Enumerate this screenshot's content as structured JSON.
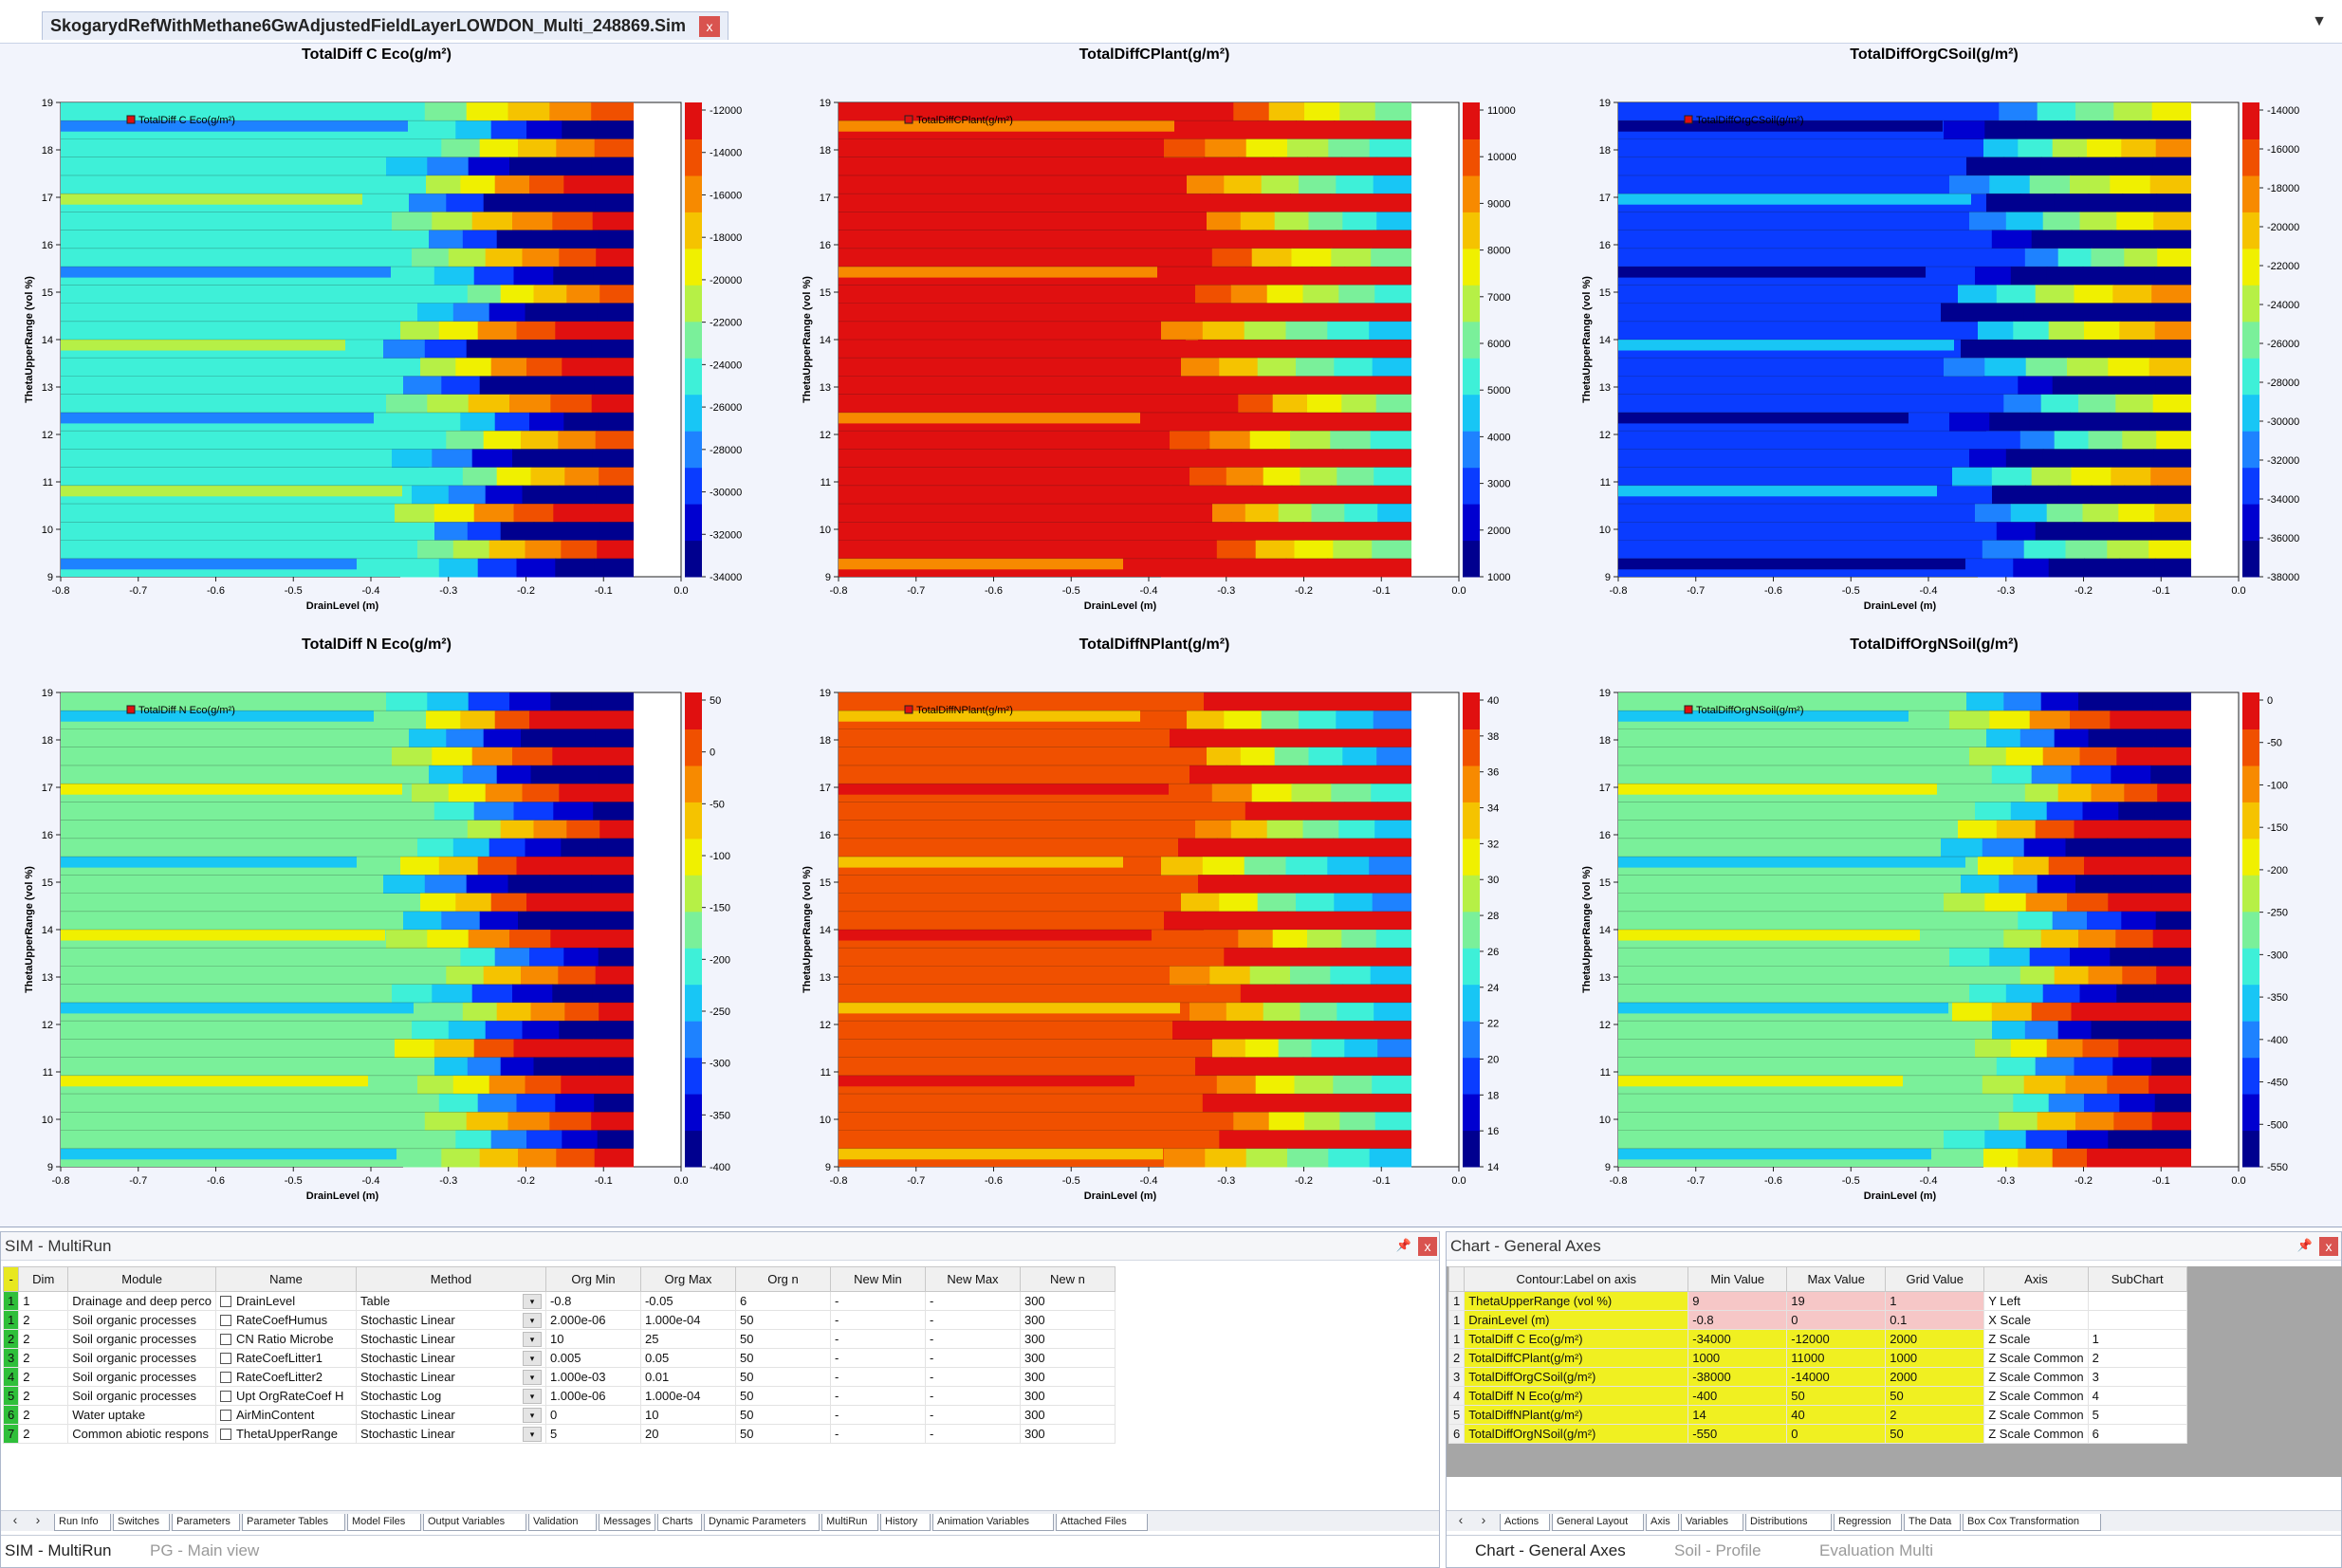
{
  "document_tab": {
    "title": "SkogarydRefWithMethane6GwAdjustedFieldLayerLOWDON_Multi_248869.Sim",
    "close": "x",
    "dropdown": "▼"
  },
  "colors": {
    "ramp": [
      "#00008f",
      "#0000d0",
      "#0a3cff",
      "#1e82ff",
      "#18c6f5",
      "#3ef0d8",
      "#7af09a",
      "#b6f046",
      "#f0f000",
      "#f5c300",
      "#f78a00",
      "#f05000",
      "#e01010"
    ],
    "chart_bg": "#f2f4fc",
    "row_header_green": "#2fbf3a",
    "highlight_yellow": "#f0f021",
    "highlight_pink": "#f6c7c7"
  },
  "chart_data": [
    {
      "type": "heatmap",
      "title": "TotalDiff C Eco(g/m²)",
      "legend": "TotalDiff C Eco(g/m²)",
      "legend_placement": "top-left",
      "xlabel": "DrainLevel (m)",
      "ylabel": "ThetaUpperRange (vol %)",
      "xlim": [
        -0.8,
        0.0
      ],
      "ylim": [
        9,
        19
      ],
      "xticks": [
        "-0.8",
        "-0.7",
        "-0.6",
        "-0.5",
        "-0.4",
        "-0.3",
        "-0.2",
        "-0.1",
        "0.0"
      ],
      "yticks": [
        "9",
        "10",
        "11",
        "12",
        "13",
        "14",
        "15",
        "16",
        "17",
        "18",
        "19"
      ],
      "zlim": [
        -34000,
        -12000
      ],
      "zticks": [
        "-12000",
        "-14000",
        "-16000",
        "-18000",
        "-20000",
        "-22000",
        "-24000",
        "-26000",
        "-28000",
        "-30000",
        "-32000",
        "-34000"
      ],
      "z_grid": 2000,
      "dominant_level": 5
    },
    {
      "type": "heatmap",
      "title": "TotalDiffCPlant(g/m²)",
      "legend": "TotalDiffCPlant(g/m²)",
      "legend_placement": "top-left",
      "xlabel": "DrainLevel (m)",
      "ylabel": "ThetaUpperRange (vol %)",
      "xlim": [
        -0.8,
        0.0
      ],
      "ylim": [
        9,
        19
      ],
      "xticks": [
        "-0.8",
        "-0.7",
        "-0.6",
        "-0.5",
        "-0.4",
        "-0.3",
        "-0.2",
        "-0.1",
        "0.0"
      ],
      "yticks": [
        "9",
        "10",
        "11",
        "12",
        "13",
        "14",
        "15",
        "16",
        "17",
        "18",
        "19"
      ],
      "zlim": [
        1000,
        11000
      ],
      "zticks": [
        "11000",
        "10000",
        "9000",
        "8000",
        "7000",
        "6000",
        "5000",
        "4000",
        "3000",
        "2000",
        "1000"
      ],
      "z_grid": 1000,
      "dominant_level": 12
    },
    {
      "type": "heatmap",
      "title": "TotalDiffOrgCSoil(g/m²)",
      "legend": "TotalDiffOrgCSoil(g/m²)",
      "legend_placement": "top-left",
      "xlabel": "DrainLevel (m)",
      "ylabel": "ThetaUpperRange (vol %)",
      "xlim": [
        -0.8,
        0.0
      ],
      "ylim": [
        9,
        19
      ],
      "xticks": [
        "-0.8",
        "-0.7",
        "-0.6",
        "-0.5",
        "-0.4",
        "-0.3",
        "-0.2",
        "-0.1",
        "0.0"
      ],
      "yticks": [
        "9",
        "10",
        "11",
        "12",
        "13",
        "14",
        "15",
        "16",
        "17",
        "18",
        "19"
      ],
      "zlim": [
        -38000,
        -14000
      ],
      "zticks": [
        "-14000",
        "-16000",
        "-18000",
        "-20000",
        "-22000",
        "-24000",
        "-26000",
        "-28000",
        "-30000",
        "-32000",
        "-34000",
        "-36000",
        "-38000"
      ],
      "z_grid": 2000,
      "dominant_level": 2
    },
    {
      "type": "heatmap",
      "title": "TotalDiff N Eco(g/m²)",
      "legend": "TotalDiff N Eco(g/m²)",
      "legend_placement": "top-left",
      "xlabel": "DrainLevel (m)",
      "ylabel": "ThetaUpperRange (vol %)",
      "xlim": [
        -0.8,
        0.0
      ],
      "ylim": [
        9,
        19
      ],
      "xticks": [
        "-0.8",
        "-0.7",
        "-0.6",
        "-0.5",
        "-0.4",
        "-0.3",
        "-0.2",
        "-0.1",
        "0.0"
      ],
      "yticks": [
        "9",
        "10",
        "11",
        "12",
        "13",
        "14",
        "15",
        "16",
        "17",
        "18",
        "19"
      ],
      "zlim": [
        -400,
        50
      ],
      "zticks": [
        "50",
        "0",
        "-50",
        "-100",
        "-150",
        "-200",
        "-250",
        "-300",
        "-350",
        "-400"
      ],
      "z_grid": 50,
      "dominant_level": 6
    },
    {
      "type": "heatmap",
      "title": "TotalDiffNPlant(g/m²)",
      "legend": "TotalDiffNPlant(g/m²)",
      "legend_placement": "top-left",
      "xlabel": "DrainLevel (m)",
      "ylabel": "ThetaUpperRange (vol %)",
      "xlim": [
        -0.8,
        0.0
      ],
      "ylim": [
        9,
        19
      ],
      "xticks": [
        "-0.8",
        "-0.7",
        "-0.6",
        "-0.5",
        "-0.4",
        "-0.3",
        "-0.2",
        "-0.1",
        "0.0"
      ],
      "yticks": [
        "9",
        "10",
        "11",
        "12",
        "13",
        "14",
        "15",
        "16",
        "17",
        "18",
        "19"
      ],
      "zlim": [
        14,
        40
      ],
      "zticks": [
        "40",
        "38",
        "36",
        "34",
        "32",
        "30",
        "28",
        "26",
        "24",
        "22",
        "20",
        "18",
        "16",
        "14"
      ],
      "z_grid": 2,
      "dominant_level": 11
    },
    {
      "type": "heatmap",
      "title": "TotalDiffOrgNSoil(g/m²)",
      "legend": "TotalDiffOrgNSoil(g/m²)",
      "legend_placement": "top-left",
      "xlabel": "DrainLevel (m)",
      "ylabel": "ThetaUpperRange (vol %)",
      "xlim": [
        -0.8,
        0.0
      ],
      "ylim": [
        9,
        19
      ],
      "xticks": [
        "-0.8",
        "-0.7",
        "-0.6",
        "-0.5",
        "-0.4",
        "-0.3",
        "-0.2",
        "-0.1",
        "0.0"
      ],
      "yticks": [
        "9",
        "10",
        "11",
        "12",
        "13",
        "14",
        "15",
        "16",
        "17",
        "18",
        "19"
      ],
      "zlim": [
        -550,
        0
      ],
      "zticks": [
        "0",
        "-50",
        "-100",
        "-150",
        "-200",
        "-250",
        "-300",
        "-350",
        "-400",
        "-450",
        "-500",
        "-550"
      ],
      "z_grid": 50,
      "dominant_level": 6
    }
  ],
  "multirun_panel": {
    "title": "SIM - MultiRun",
    "pin": "📌",
    "close": "x",
    "columns": [
      "-",
      "Dim",
      "Module",
      "Name",
      "Method",
      "Org Min",
      "Org Max",
      "Org n",
      "New Min",
      "New Max",
      "New n"
    ],
    "rows": [
      {
        "idx": "1",
        "dim": "1",
        "module": "Drainage and deep perco",
        "name": "DrainLevel",
        "method": "Table",
        "org_min": "-0.8",
        "org_max": "-0.05",
        "org_n": "6",
        "new_min": "-",
        "new_max": "-",
        "new_n": "300"
      },
      {
        "idx": "1",
        "dim": "2",
        "module": "Soil organic processes",
        "name": "RateCoefHumus",
        "method": "Stochastic Linear",
        "org_min": "2.000e-06",
        "org_max": "1.000e-04",
        "org_n": "50",
        "new_min": "-",
        "new_max": "-",
        "new_n": "300"
      },
      {
        "idx": "2",
        "dim": "2",
        "module": "Soil organic processes",
        "name": "CN Ratio Microbe",
        "method": "Stochastic Linear",
        "org_min": "10",
        "org_max": "25",
        "org_n": "50",
        "new_min": "-",
        "new_max": "-",
        "new_n": "300"
      },
      {
        "idx": "3",
        "dim": "2",
        "module": "Soil organic processes",
        "name": "RateCoefLitter1",
        "method": "Stochastic Linear",
        "org_min": "0.005",
        "org_max": "0.05",
        "org_n": "50",
        "new_min": "-",
        "new_max": "-",
        "new_n": "300"
      },
      {
        "idx": "4",
        "dim": "2",
        "module": "Soil organic processes",
        "name": "RateCoefLitter2",
        "method": "Stochastic Linear",
        "org_min": "1.000e-03",
        "org_max": "0.01",
        "org_n": "50",
        "new_min": "-",
        "new_max": "-",
        "new_n": "300"
      },
      {
        "idx": "5",
        "dim": "2",
        "module": "Soil organic processes",
        "name": "Upt OrgRateCoef H",
        "method": "Stochastic Log",
        "org_min": "1.000e-06",
        "org_max": "1.000e-04",
        "org_n": "50",
        "new_min": "-",
        "new_max": "-",
        "new_n": "300"
      },
      {
        "idx": "6",
        "dim": "2",
        "module": "Water uptake",
        "name": "AirMinContent",
        "method": "Stochastic Linear",
        "org_min": "0",
        "org_max": "10",
        "org_n": "50",
        "new_min": "-",
        "new_max": "-",
        "new_n": "300"
      },
      {
        "idx": "7",
        "dim": "2",
        "module": "Common abiotic respons",
        "name": "ThetaUpperRange",
        "method": "Stochastic Linear",
        "org_min": "5",
        "org_max": "20",
        "org_n": "50",
        "new_min": "-",
        "new_max": "-",
        "new_n": "300"
      }
    ],
    "subtabs": [
      "Run Info",
      "Switches",
      "Parameters",
      "Parameter Tables",
      "Model Files",
      "Output Variables",
      "Validation",
      "Messages",
      "Charts",
      "Dynamic Parameters",
      "MultiRun",
      "History",
      "Animation Variables",
      "Attached Files"
    ],
    "active_subtab": "MultiRun"
  },
  "axes_panel": {
    "title": "Chart - General Axes",
    "pin": "📌",
    "close": "x",
    "columns": [
      "",
      "Contour:Label on axis",
      "Min Value",
      "Max Value",
      "Grid Value",
      "Axis",
      "SubChart"
    ],
    "rows": [
      {
        "idx": "1",
        "label": "ThetaUpperRange (vol %)",
        "min": "9",
        "max": "19",
        "grid": "1",
        "axis": "Y Left",
        "sub": "",
        "tone": "pink"
      },
      {
        "idx": "1",
        "label": "DrainLevel (m)",
        "min": "-0.8",
        "max": "0",
        "grid": "0.1",
        "axis": "X Scale",
        "sub": "",
        "tone": "pink"
      },
      {
        "idx": "1",
        "label": "TotalDiff C Eco(g/m²)",
        "min": "-34000",
        "max": "-12000",
        "grid": "2000",
        "axis": "Z Scale",
        "sub": "1",
        "tone": "yellow"
      },
      {
        "idx": "2",
        "label": "TotalDiffCPlant(g/m²)",
        "min": "1000",
        "max": "11000",
        "grid": "1000",
        "axis": "Z Scale Common",
        "sub": "2",
        "tone": "yellow"
      },
      {
        "idx": "3",
        "label": "TotalDiffOrgCSoil(g/m²)",
        "min": "-38000",
        "max": "-14000",
        "grid": "2000",
        "axis": "Z Scale Common",
        "sub": "3",
        "tone": "yellow"
      },
      {
        "idx": "4",
        "label": "TotalDiff N Eco(g/m²)",
        "min": "-400",
        "max": "50",
        "grid": "50",
        "axis": "Z Scale Common",
        "sub": "4",
        "tone": "yellow"
      },
      {
        "idx": "5",
        "label": "TotalDiffNPlant(g/m²)",
        "min": "14",
        "max": "40",
        "grid": "2",
        "axis": "Z Scale Common",
        "sub": "5",
        "tone": "yellow"
      },
      {
        "idx": "6",
        "label": "TotalDiffOrgNSoil(g/m²)",
        "min": "-550",
        "max": "0",
        "grid": "50",
        "axis": "Z Scale Common",
        "sub": "6",
        "tone": "yellow"
      }
    ],
    "subtabs": [
      "Actions",
      "General Layout",
      "Axis",
      "Variables",
      "Distributions",
      "Regression",
      "The Data",
      "Box Cox Transformation"
    ],
    "active_subtab": "Axis"
  },
  "bottom_tabs_left": [
    {
      "label": "SIM - MultiRun",
      "active": true
    },
    {
      "label": "PG - Main view",
      "active": false
    }
  ],
  "bottom_tabs_right": [
    {
      "label": "Chart - General Axes",
      "active": true
    },
    {
      "label": "Soil - Profile",
      "active": false
    },
    {
      "label": "Evaluation Multi",
      "active": false
    }
  ]
}
